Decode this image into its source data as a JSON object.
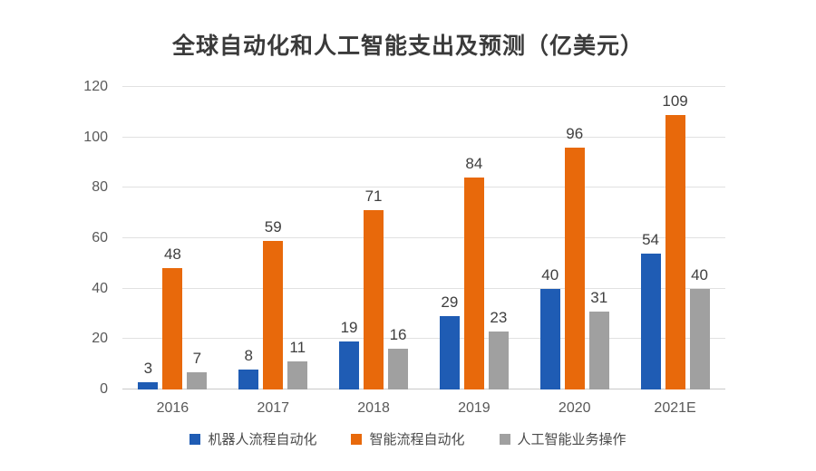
{
  "chart_data": {
    "type": "bar",
    "title": "全球自动化和人工智能支出及预测（亿美元）",
    "categories": [
      "2016",
      "2017",
      "2018",
      "2019",
      "2020",
      "2021E"
    ],
    "series": [
      {
        "name": "机器人流程自动化",
        "color": "#1f5cb4",
        "values": [
          3,
          8,
          19,
          29,
          40,
          54
        ]
      },
      {
        "name": "智能流程自动化",
        "color": "#e8690b",
        "values": [
          48,
          59,
          71,
          84,
          96,
          109
        ]
      },
      {
        "name": "人工智能业务操作",
        "color": "#a0a0a0",
        "values": [
          7,
          11,
          16,
          23,
          31,
          40
        ]
      }
    ],
    "xlabel": "",
    "ylabel": "",
    "ylim": [
      0,
      120
    ],
    "yticks": [
      0,
      20,
      40,
      60,
      80,
      100,
      120
    ],
    "grid": true,
    "legend_position": "bottom",
    "value_labels": true
  },
  "colors": {
    "title": "#3a3a3a",
    "axis_label": "#595959",
    "data_label": "#3f3f3f",
    "gridline": "#e1e1e1",
    "baseline": "#c9c9c9",
    "background": "#ffffff"
  }
}
